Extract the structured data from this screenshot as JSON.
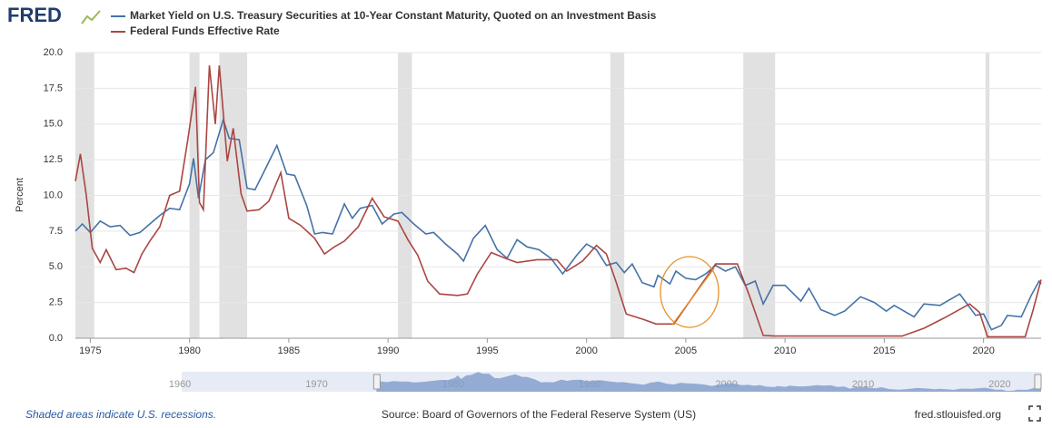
{
  "brand": "FRED",
  "chart_data": {
    "type": "line",
    "y_label": "Percent",
    "xlim": [
      1974.25,
      2022.9
    ],
    "xticks": [
      1975,
      1980,
      1985,
      1990,
      1995,
      2000,
      2005,
      2010,
      2015,
      2020
    ],
    "ylim": [
      0,
      20
    ],
    "yticks": [
      {
        "value": 0,
        "label": "0.0"
      },
      2.5,
      {
        "value": 5,
        "label": "5.0"
      },
      7.5,
      {
        "value": 10,
        "label": "10.0"
      },
      12.5,
      {
        "value": 15,
        "label": "15.0"
      },
      17.5,
      {
        "value": 20,
        "label": "20.0"
      }
    ],
    "grid": true,
    "recession_color": "#e1e1e1",
    "recessions": [
      [
        1973.9,
        1975.2
      ],
      [
        1980.0,
        1980.5
      ],
      [
        1981.5,
        1982.9
      ],
      [
        1990.5,
        1991.2
      ],
      [
        2001.2,
        2001.9
      ],
      [
        2007.9,
        2009.5
      ],
      [
        2020.1,
        2020.3
      ]
    ],
    "series": [
      {
        "name": "Market Yield on U.S. Treasury Securities at 10-Year Constant Maturity, Quoted on an Investment Basis",
        "color": "#4572a7",
        "x": [
          1974.25,
          1974.6,
          1975.0,
          1975.5,
          1976.0,
          1976.5,
          1977.0,
          1977.5,
          1978.0,
          1978.5,
          1979.0,
          1979.5,
          1980.0,
          1980.2,
          1980.45,
          1980.8,
          1981.2,
          1981.7,
          1982.0,
          1982.5,
          1982.9,
          1983.3,
          1983.8,
          1984.4,
          1984.9,
          1985.3,
          1985.9,
          1986.3,
          1986.7,
          1987.2,
          1987.8,
          1988.2,
          1988.6,
          1989.2,
          1989.7,
          1990.3,
          1990.7,
          1991.3,
          1991.9,
          1992.3,
          1992.9,
          1993.5,
          1993.8,
          1994.3,
          1994.9,
          1995.5,
          1996.0,
          1996.5,
          1997.0,
          1997.6,
          1998.2,
          1998.8,
          1999.5,
          2000.0,
          2000.5,
          2001.0,
          2001.5,
          2001.9,
          2002.3,
          2002.8,
          2003.4,
          2003.6,
          2004.2,
          2004.5,
          2005.0,
          2005.5,
          2006.0,
          2006.5,
          2007.0,
          2007.5,
          2008.0,
          2008.5,
          2008.9,
          2009.4,
          2010.0,
          2010.8,
          2011.2,
          2011.8,
          2012.5,
          2013.0,
          2013.8,
          2014.5,
          2015.1,
          2015.5,
          2016.5,
          2017.0,
          2017.8,
          2018.8,
          2019.6,
          2020.0,
          2020.4,
          2020.9,
          2021.2,
          2021.9,
          2022.4,
          2022.8,
          2022.9
        ],
        "values": [
          7.5,
          8.0,
          7.4,
          8.2,
          7.8,
          7.9,
          7.2,
          7.4,
          8.0,
          8.6,
          9.1,
          9.0,
          10.8,
          12.6,
          9.8,
          12.5,
          13.0,
          15.3,
          14.0,
          13.9,
          10.5,
          10.4,
          11.8,
          13.5,
          11.5,
          11.4,
          9.3,
          7.3,
          7.4,
          7.3,
          9.4,
          8.4,
          9.1,
          9.3,
          8.0,
          8.7,
          8.8,
          8.0,
          7.3,
          7.4,
          6.6,
          5.9,
          5.4,
          7.0,
          7.9,
          6.2,
          5.6,
          6.9,
          6.4,
          6.2,
          5.6,
          4.5,
          5.8,
          6.6,
          6.2,
          5.1,
          5.3,
          4.6,
          5.2,
          3.9,
          3.6,
          4.4,
          3.8,
          4.7,
          4.2,
          4.1,
          4.5,
          5.1,
          4.7,
          5.0,
          3.7,
          4.0,
          2.4,
          3.7,
          3.7,
          2.6,
          3.5,
          2.0,
          1.6,
          1.9,
          2.9,
          2.5,
          1.9,
          2.3,
          1.5,
          2.4,
          2.3,
          3.1,
          1.6,
          1.7,
          0.6,
          0.9,
          1.6,
          1.5,
          3.0,
          4.0,
          3.8
        ]
      },
      {
        "name": "Federal Funds Effective Rate",
        "color": "#aa4643",
        "x": [
          1974.25,
          1974.5,
          1974.8,
          1975.1,
          1975.5,
          1975.8,
          1976.3,
          1976.8,
          1977.2,
          1977.6,
          1978.0,
          1978.5,
          1979.0,
          1979.5,
          1979.9,
          1980.3,
          1980.5,
          1980.7,
          1981.0,
          1981.3,
          1981.5,
          1981.9,
          1982.2,
          1982.6,
          1982.9,
          1983.5,
          1984.0,
          1984.6,
          1985.0,
          1985.6,
          1986.3,
          1986.8,
          1987.3,
          1987.8,
          1988.5,
          1989.2,
          1989.8,
          1990.5,
          1991.0,
          1991.5,
          1992.0,
          1992.6,
          1993.5,
          1994.0,
          1994.5,
          1995.2,
          1995.9,
          1996.5,
          1997.5,
          1998.5,
          1999.0,
          1999.8,
          2000.5,
          2001.0,
          2001.5,
          2002.0,
          2002.9,
          2003.5,
          2004.4,
          2006.5,
          2007.6,
          2008.2,
          2008.9,
          2009.5,
          2015.9,
          2017.0,
          2018.0,
          2019.3,
          2019.8,
          2020.2,
          2022.1,
          2022.5,
          2022.9
        ],
        "values": [
          11.0,
          12.9,
          10.0,
          6.3,
          5.3,
          6.2,
          4.8,
          4.9,
          4.6,
          5.9,
          6.8,
          7.8,
          10.0,
          10.3,
          13.8,
          17.6,
          9.5,
          9.0,
          19.1,
          15.0,
          19.1,
          12.4,
          14.7,
          10.1,
          8.9,
          9.0,
          9.6,
          11.6,
          8.4,
          7.9,
          7.0,
          5.9,
          6.4,
          6.8,
          7.8,
          9.8,
          8.5,
          8.2,
          6.9,
          5.8,
          4.0,
          3.1,
          3.0,
          3.1,
          4.5,
          6.0,
          5.6,
          5.3,
          5.5,
          5.5,
          4.7,
          5.4,
          6.5,
          5.9,
          3.9,
          1.7,
          1.3,
          1.0,
          1.0,
          5.2,
          5.2,
          3.0,
          0.2,
          0.15,
          0.15,
          0.7,
          1.4,
          2.4,
          1.8,
          0.1,
          0.1,
          2.0,
          4.1
        ]
      }
    ],
    "navigator": {
      "xlim": [
        1958,
        2022.9
      ],
      "xticks": [
        1960,
        1970,
        1980,
        1990,
        2000,
        2010,
        2020
      ]
    }
  },
  "footer": {
    "note": "Shaded areas indicate U.S. recessions.",
    "source": "Source: Board of Governors of the Federal Reserve System (US)",
    "site": "fred.stlouisfed.org"
  }
}
